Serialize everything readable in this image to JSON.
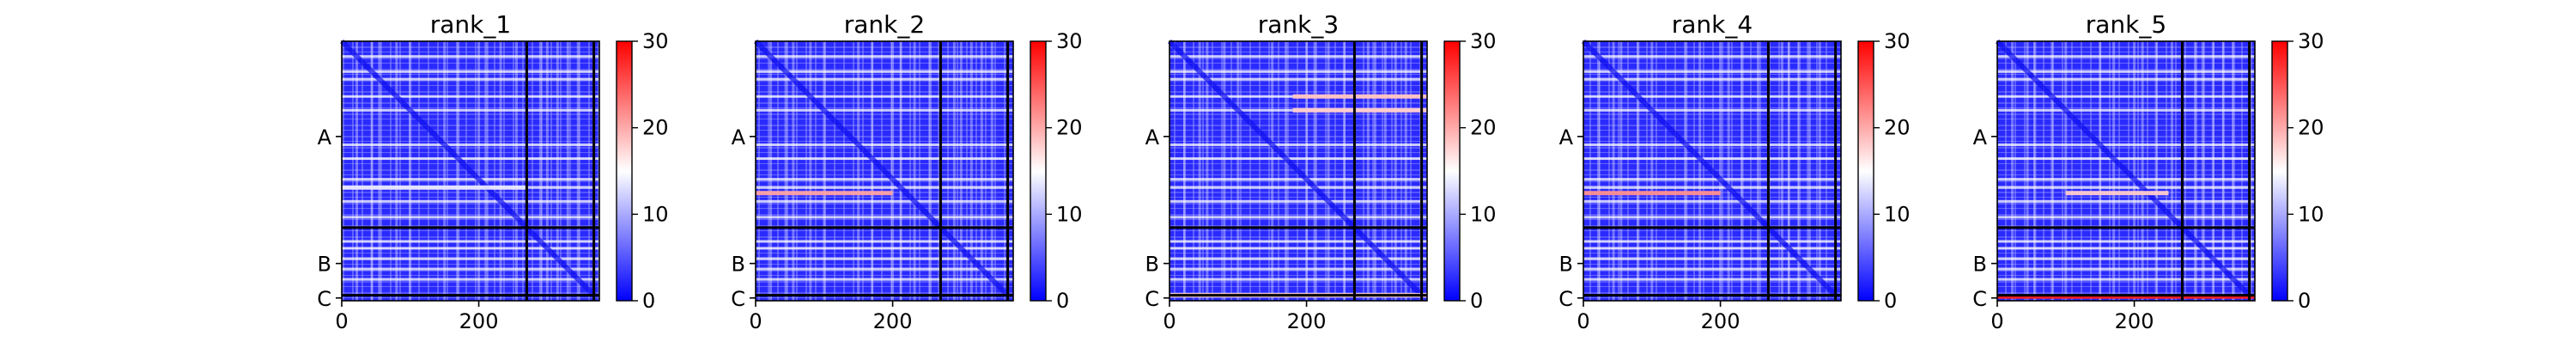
{
  "figure": {
    "chain_labels": [
      "A",
      "B",
      "C"
    ],
    "x_tick_labels": [
      "0",
      "200"
    ],
    "colorbar_tick_labels": [
      "0",
      "10",
      "20",
      "30"
    ],
    "colormap": [
      "#0000ff",
      "#ffffff",
      "#ff0000"
    ]
  },
  "chart_data": [
    {
      "type": "heatmap",
      "title": "rank_1",
      "xlim": [
        0,
        376
      ],
      "ylim": [
        376,
        0
      ],
      "x_ticks": [
        0,
        200
      ],
      "y_ticks": [
        {
          "label": "A",
          "value": 138
        },
        {
          "label": "B",
          "value": 322
        },
        {
          "label": "C",
          "value": 372
        }
      ],
      "chain_boundaries": [
        270,
        368
      ],
      "colorbar": {
        "min": 0,
        "max": 30,
        "ticks": [
          0,
          10,
          20,
          30
        ]
      },
      "bright_rows": [
        {
          "pos": 212,
          "level": 0.45,
          "span": [
            0,
            270
          ]
        }
      ]
    },
    {
      "type": "heatmap",
      "title": "rank_2",
      "xlim": [
        0,
        376
      ],
      "ylim": [
        376,
        0
      ],
      "x_ticks": [
        0,
        200
      ],
      "y_ticks": [
        {
          "label": "A",
          "value": 138
        },
        {
          "label": "B",
          "value": 322
        },
        {
          "label": "C",
          "value": 372
        }
      ],
      "chain_boundaries": [
        270,
        368
      ],
      "colorbar": {
        "min": 0,
        "max": 30,
        "ticks": [
          0,
          10,
          20,
          30
        ]
      },
      "bright_rows": [
        {
          "pos": 220,
          "level": 0.68,
          "span": [
            0,
            200
          ]
        }
      ]
    },
    {
      "type": "heatmap",
      "title": "rank_3",
      "xlim": [
        0,
        376
      ],
      "ylim": [
        376,
        0
      ],
      "x_ticks": [
        0,
        200
      ],
      "y_ticks": [
        {
          "label": "A",
          "value": 138
        },
        {
          "label": "B",
          "value": 322
        },
        {
          "label": "C",
          "value": 372
        }
      ],
      "chain_boundaries": [
        270,
        368
      ],
      "colorbar": {
        "min": 0,
        "max": 30,
        "ticks": [
          0,
          10,
          20,
          30
        ]
      },
      "bright_rows": [
        {
          "pos": 80,
          "level": 0.62,
          "span": [
            180,
            376
          ]
        },
        {
          "pos": 100,
          "level": 0.6,
          "span": [
            180,
            376
          ]
        },
        {
          "pos": 368,
          "level": 0.6,
          "span": [
            0,
            376
          ]
        }
      ]
    },
    {
      "type": "heatmap",
      "title": "rank_4",
      "xlim": [
        0,
        376
      ],
      "ylim": [
        376,
        0
      ],
      "x_ticks": [
        0,
        200
      ],
      "y_ticks": [
        {
          "label": "A",
          "value": 138
        },
        {
          "label": "B",
          "value": 322
        },
        {
          "label": "C",
          "value": 372
        }
      ],
      "chain_boundaries": [
        270,
        368
      ],
      "colorbar": {
        "min": 0,
        "max": 30,
        "ticks": [
          0,
          10,
          20,
          30
        ]
      },
      "bright_rows": [
        {
          "pos": 220,
          "level": 0.72,
          "span": [
            0,
            200
          ]
        }
      ]
    },
    {
      "type": "heatmap",
      "title": "rank_5",
      "xlim": [
        0,
        376
      ],
      "ylim": [
        376,
        0
      ],
      "x_ticks": [
        0,
        200
      ],
      "y_ticks": [
        {
          "label": "A",
          "value": 138
        },
        {
          "label": "B",
          "value": 322
        },
        {
          "label": "C",
          "value": 372
        }
      ],
      "chain_boundaries": [
        270,
        368
      ],
      "colorbar": {
        "min": 0,
        "max": 30,
        "ticks": [
          0,
          10,
          20,
          30
        ]
      },
      "bright_rows": [
        {
          "pos": 220,
          "level": 0.6,
          "span": [
            100,
            250
          ]
        },
        {
          "pos": 370,
          "level": 0.95,
          "span": [
            0,
            376
          ]
        }
      ]
    }
  ]
}
